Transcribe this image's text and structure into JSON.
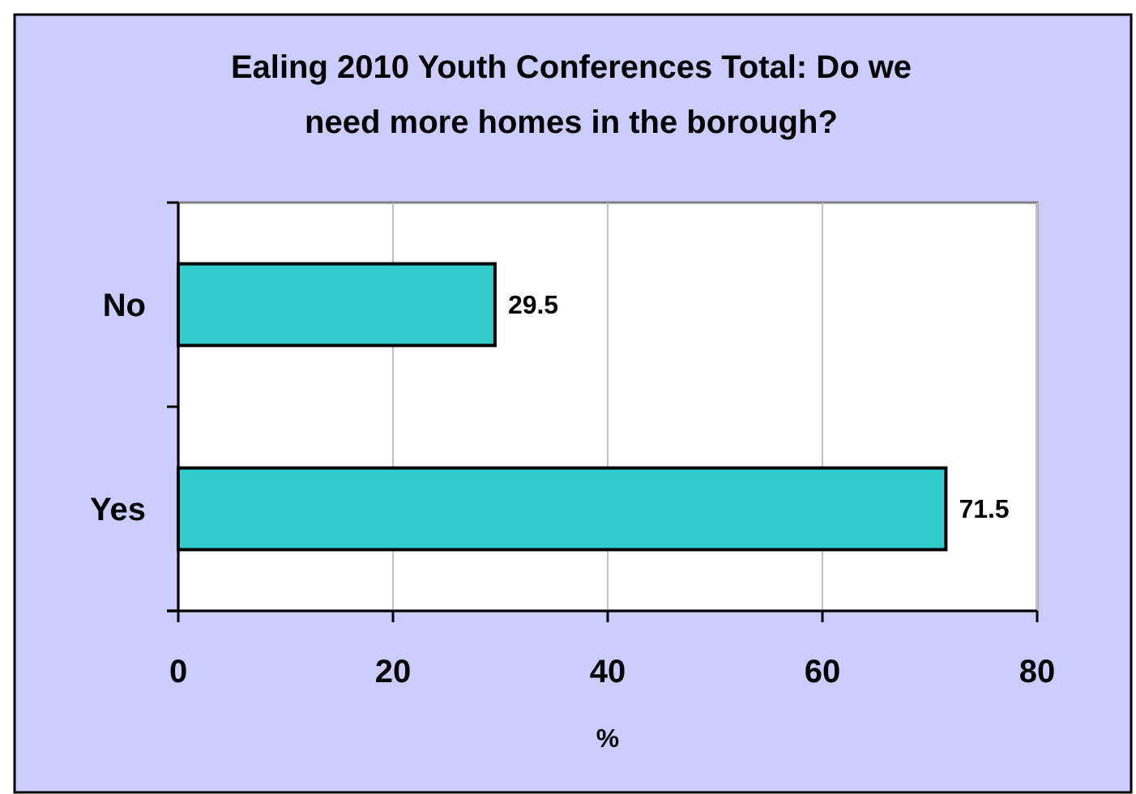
{
  "chart_data": {
    "type": "bar",
    "orientation": "horizontal",
    "title": "Ealing 2010 Youth Conferences Total: Do we need more homes in the borough?",
    "xlabel": "%",
    "categories": [
      "No",
      "Yes"
    ],
    "values": [
      29.5,
      71.5
    ],
    "color": "#33cccc",
    "xlim": [
      0,
      80
    ],
    "xticks": [
      0,
      20,
      40,
      60,
      80
    ],
    "grid": "x",
    "data_labels": true
  }
}
